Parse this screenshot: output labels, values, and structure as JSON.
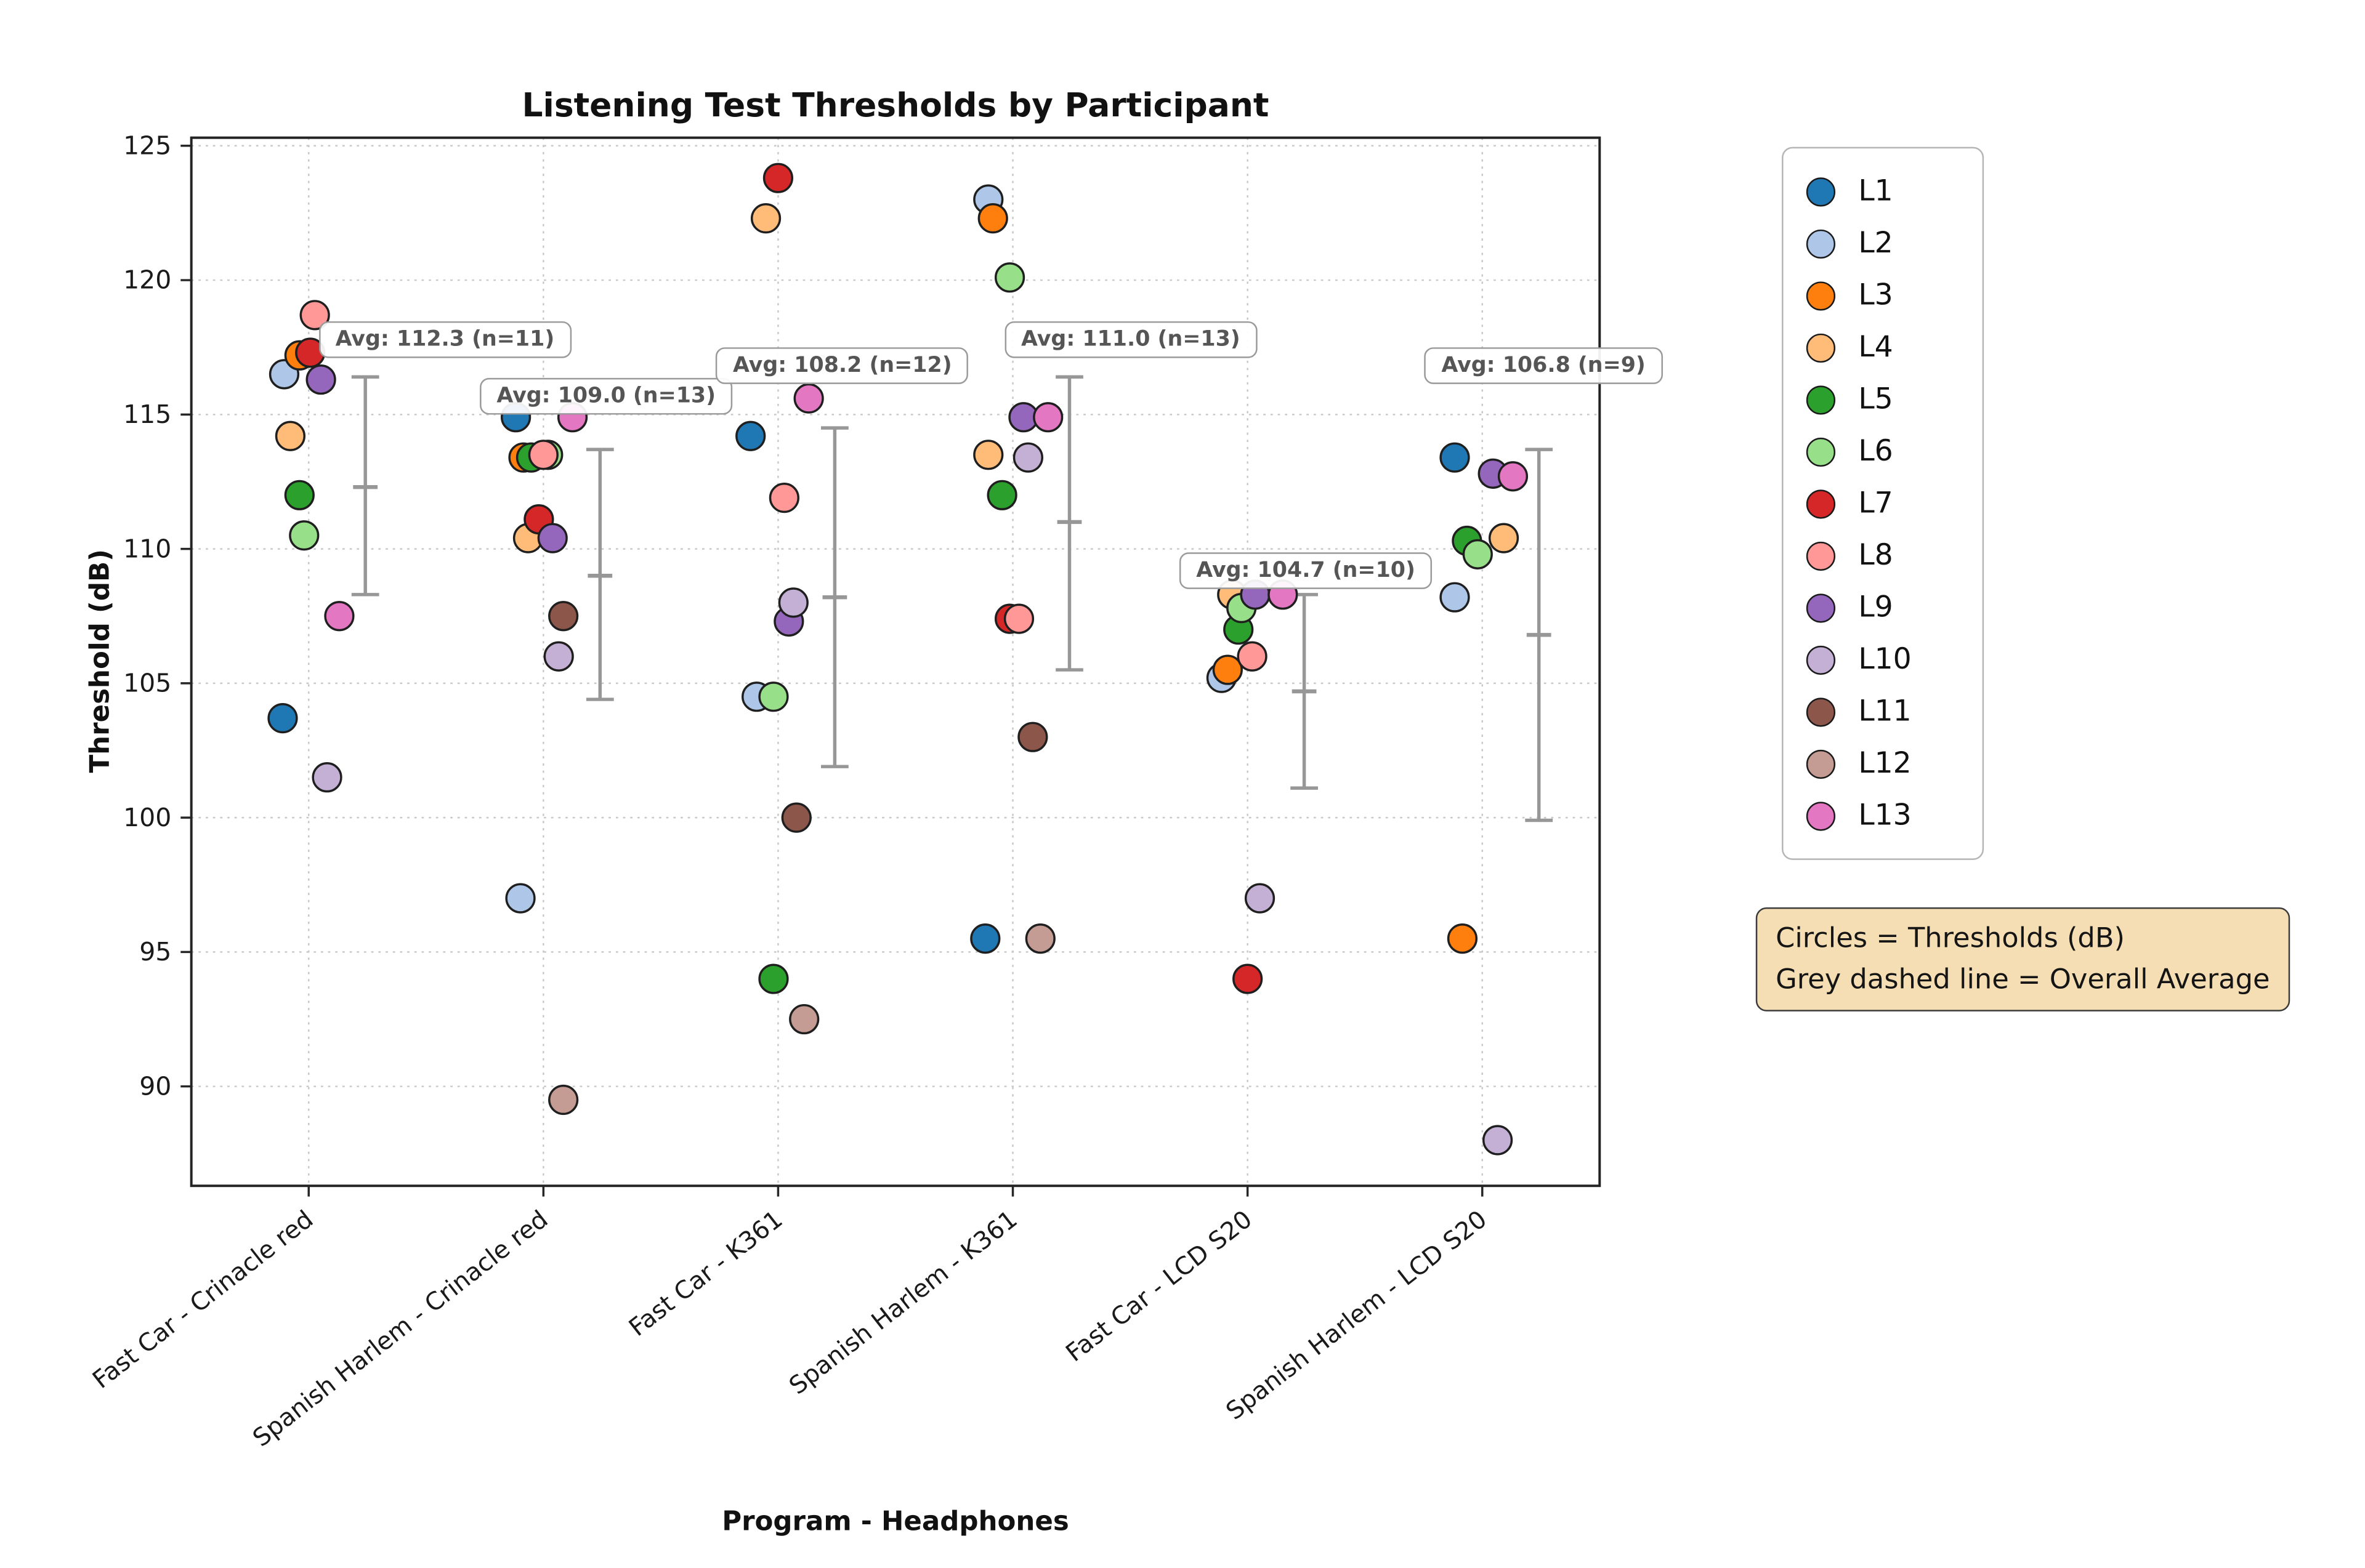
{
  "note": {
    "line1": "Circles = Thresholds (dB)",
    "line2": "Grey dashed line = Overall Average"
  },
  "style": {
    "note_bg": "#f5deb3",
    "errorbar_color": "#979797",
    "annotation_text_color": "#555555"
  },
  "chart_data": {
    "type": "scatter",
    "title": "Listening Test Thresholds by Participant",
    "xlabel": "Program - Headphones",
    "ylabel": "Threshold (dB)",
    "ylim": [
      86.3,
      125.3
    ],
    "yticks": [
      90,
      95,
      100,
      105,
      110,
      115,
      120,
      125
    ],
    "grid": "dotted, both axes",
    "legend_position": "outside upper right",
    "categories": [
      "Fast Car - Crinacle red",
      "Spanish Harlem - Crinacle red",
      "Fast Car - K361",
      "Spanish Harlem - K361",
      "Fast Car - LCD S20",
      "Spanish Harlem - LCD S20"
    ],
    "participants": [
      {
        "id": "L1",
        "color": "#1f77b4"
      },
      {
        "id": "L2",
        "color": "#aec7e8"
      },
      {
        "id": "L3",
        "color": "#ff7f0e"
      },
      {
        "id": "L4",
        "color": "#ffbb78"
      },
      {
        "id": "L5",
        "color": "#2ca02c"
      },
      {
        "id": "L6",
        "color": "#98df8a"
      },
      {
        "id": "L7",
        "color": "#d62728"
      },
      {
        "id": "L8",
        "color": "#ff9896"
      },
      {
        "id": "L9",
        "color": "#9467bd"
      },
      {
        "id": "L10",
        "color": "#c5b0d5"
      },
      {
        "id": "L11",
        "color": "#8c564b"
      },
      {
        "id": "L12",
        "color": "#c49c94"
      },
      {
        "id": "L13",
        "color": "#e377c2"
      }
    ],
    "groups": [
      {
        "category": "Fast Car - Crinacle red",
        "avg": 112.3,
        "n": 11,
        "annotation": {
          "text": "Avg: 112.3 (n=11)",
          "x_offset": 52,
          "y": 117.8
        },
        "errorbar": {
          "mean": 112.3,
          "low": 108.3,
          "high": 116.4
        },
        "points": [
          {
            "participant": "L1",
            "value": 103.7,
            "jitter": -17
          },
          {
            "participant": "L2",
            "value": 116.5,
            "jitter": -16
          },
          {
            "participant": "L3",
            "value": 117.2,
            "jitter": -6
          },
          {
            "participant": "L4",
            "value": 114.2,
            "jitter": -12
          },
          {
            "participant": "L5",
            "value": 112.0,
            "jitter": -6
          },
          {
            "participant": "L6",
            "value": 110.5,
            "jitter": -3
          },
          {
            "participant": "L7",
            "value": 117.3,
            "jitter": 1
          },
          {
            "participant": "L8",
            "value": 118.7,
            "jitter": 4
          },
          {
            "participant": "L9",
            "value": 116.3,
            "jitter": 8
          },
          {
            "participant": "L10",
            "value": 101.5,
            "jitter": 12
          },
          {
            "participant": "L13",
            "value": 107.5,
            "jitter": 20
          }
        ]
      },
      {
        "category": "Spanish Harlem - Crinacle red",
        "avg": 109.0,
        "n": 13,
        "annotation": {
          "text": "Avg: 109.0 (n=13)",
          "x_offset": 4,
          "y": 115.7
        },
        "errorbar": {
          "mean": 109.0,
          "low": 104.4,
          "high": 113.7
        },
        "points": [
          {
            "participant": "L1",
            "value": 114.9,
            "jitter": -18
          },
          {
            "participant": "L2",
            "value": 97.0,
            "jitter": -15
          },
          {
            "participant": "L3",
            "value": 113.4,
            "jitter": -13
          },
          {
            "participant": "L4",
            "value": 110.4,
            "jitter": -10
          },
          {
            "participant": "L5",
            "value": 113.4,
            "jitter": -8
          },
          {
            "participant": "L6",
            "value": 113.5,
            "jitter": 3
          },
          {
            "participant": "L7",
            "value": 111.1,
            "jitter": -3
          },
          {
            "participant": "L8",
            "value": 113.5,
            "jitter": 0
          },
          {
            "participant": "L9",
            "value": 110.4,
            "jitter": 6
          },
          {
            "participant": "L10",
            "value": 106.0,
            "jitter": 10
          },
          {
            "participant": "L11",
            "value": 107.5,
            "jitter": 13
          },
          {
            "participant": "L12",
            "value": 89.5,
            "jitter": 13
          },
          {
            "participant": "L13",
            "value": 114.9,
            "jitter": 19
          }
        ]
      },
      {
        "category": "Fast Car - K361",
        "avg": 108.2,
        "n": 12,
        "annotation": {
          "text": "Avg: 108.2 (n=12)",
          "x_offset": 5,
          "y": 116.8
        },
        "errorbar": {
          "mean": 108.2,
          "low": 101.9,
          "high": 114.5
        },
        "points": [
          {
            "participant": "L1",
            "value": 114.2,
            "jitter": -18
          },
          {
            "participant": "L2",
            "value": 104.5,
            "jitter": -14
          },
          {
            "participant": "L4",
            "value": 122.3,
            "jitter": -8
          },
          {
            "participant": "L5",
            "value": 94.0,
            "jitter": -3
          },
          {
            "participant": "L6",
            "value": 104.5,
            "jitter": -3
          },
          {
            "participant": "L7",
            "value": 123.8,
            "jitter": 0
          },
          {
            "participant": "L8",
            "value": 111.9,
            "jitter": 4
          },
          {
            "participant": "L9",
            "value": 107.3,
            "jitter": 7
          },
          {
            "participant": "L10",
            "value": 108.0,
            "jitter": 10
          },
          {
            "participant": "L11",
            "value": 100.0,
            "jitter": 12
          },
          {
            "participant": "L12",
            "value": 92.5,
            "jitter": 17
          },
          {
            "participant": "L13",
            "value": 115.6,
            "jitter": 20
          }
        ]
      },
      {
        "category": "Spanish Harlem - K361",
        "avg": 111.0,
        "n": 13,
        "annotation": {
          "text": "Avg: 111.0 (n=13)",
          "x_offset": 40,
          "y": 117.8
        },
        "errorbar": {
          "mean": 111.0,
          "low": 105.5,
          "high": 116.4
        },
        "points": [
          {
            "participant": "L1",
            "value": 95.5,
            "jitter": -18
          },
          {
            "participant": "L2",
            "value": 123.0,
            "jitter": -16
          },
          {
            "participant": "L3",
            "value": 122.3,
            "jitter": -13
          },
          {
            "participant": "L4",
            "value": 113.5,
            "jitter": -16
          },
          {
            "participant": "L5",
            "value": 112.0,
            "jitter": -7
          },
          {
            "participant": "L6",
            "value": 120.1,
            "jitter": -2
          },
          {
            "participant": "L7",
            "value": 107.4,
            "jitter": -2
          },
          {
            "participant": "L8",
            "value": 107.4,
            "jitter": 4
          },
          {
            "participant": "L9",
            "value": 114.9,
            "jitter": 7
          },
          {
            "participant": "L10",
            "value": 113.4,
            "jitter": 10
          },
          {
            "participant": "L11",
            "value": 103.0,
            "jitter": 13
          },
          {
            "participant": "L12",
            "value": 95.5,
            "jitter": 18
          },
          {
            "participant": "L13",
            "value": 114.9,
            "jitter": 23
          }
        ]
      },
      {
        "category": "Fast Car - LCD S20",
        "avg": 104.7,
        "n": 10,
        "annotation": {
          "text": "Avg: 104.7 (n=10)",
          "x_offset": 1,
          "y": 109.2
        },
        "errorbar": {
          "mean": 104.7,
          "low": 101.1,
          "high": 108.3
        },
        "points": [
          {
            "participant": "L2",
            "value": 105.2,
            "jitter": -17
          },
          {
            "participant": "L3",
            "value": 105.5,
            "jitter": -13
          },
          {
            "participant": "L4",
            "value": 108.3,
            "jitter": -10
          },
          {
            "participant": "L5",
            "value": 107.0,
            "jitter": -6
          },
          {
            "participant": "L6",
            "value": 107.8,
            "jitter": -4
          },
          {
            "participant": "L7",
            "value": 94.0,
            "jitter": 0
          },
          {
            "participant": "L8",
            "value": 106.0,
            "jitter": 3
          },
          {
            "participant": "L9",
            "value": 108.3,
            "jitter": 5
          },
          {
            "participant": "L10",
            "value": 97.0,
            "jitter": 8
          },
          {
            "participant": "L13",
            "value": 108.3,
            "jitter": 23
          }
        ]
      },
      {
        "category": "Spanish Harlem - LCD S20",
        "avg": 106.8,
        "n": 9,
        "annotation": {
          "text": "Avg: 106.8 (n=9)",
          "x_offset": 3,
          "y": 116.8
        },
        "errorbar": {
          "mean": 106.8,
          "low": 99.9,
          "high": 113.7
        },
        "points": [
          {
            "participant": "L1",
            "value": 113.4,
            "jitter": -18
          },
          {
            "participant": "L2",
            "value": 108.2,
            "jitter": -18
          },
          {
            "participant": "L3",
            "value": 95.5,
            "jitter": -13
          },
          {
            "participant": "L4",
            "value": 110.4,
            "jitter": 14
          },
          {
            "participant": "L5",
            "value": 110.3,
            "jitter": -10
          },
          {
            "participant": "L6",
            "value": 109.8,
            "jitter": -3
          },
          {
            "participant": "L9",
            "value": 112.8,
            "jitter": 7
          },
          {
            "participant": "L10",
            "value": 88.0,
            "jitter": 10
          },
          {
            "participant": "L13",
            "value": 112.7,
            "jitter": 20
          }
        ]
      }
    ]
  }
}
